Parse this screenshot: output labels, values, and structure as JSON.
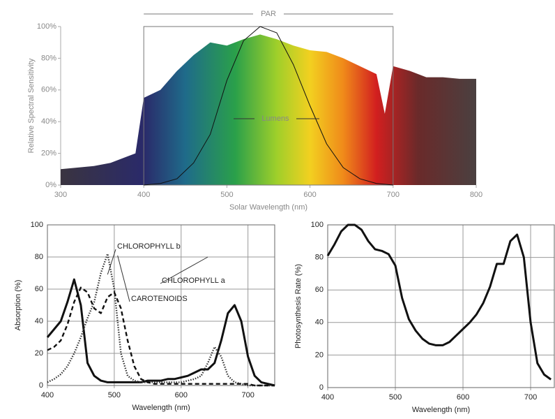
{
  "chart_data": [
    {
      "type": "area",
      "x_label": "Solar Wavelength (nm)",
      "y_label": "Relative Spectral Sensitivity",
      "annotations": [
        "PAR",
        "Lumens"
      ],
      "par_range": [
        400,
        700
      ],
      "xlim": [
        300,
        800
      ],
      "ylim": [
        0,
        100
      ],
      "xticks": [
        300,
        400,
        500,
        600,
        700,
        800
      ],
      "yticks": [
        {
          "value": 0,
          "label": "0%"
        },
        {
          "value": 20,
          "label": "20%"
        },
        {
          "value": 40,
          "label": "40%"
        },
        {
          "value": 60,
          "label": "60%"
        },
        {
          "value": 80,
          "label": "80%"
        },
        {
          "value": 100,
          "label": "100%"
        }
      ],
      "x": [
        300,
        320,
        340,
        360,
        380,
        390,
        400,
        420,
        440,
        460,
        480,
        500,
        520,
        540,
        560,
        580,
        600,
        620,
        640,
        660,
        680,
        690,
        700,
        720,
        740,
        760,
        780,
        800
      ],
      "values": [
        10,
        11,
        12,
        14,
        18,
        20,
        55,
        60,
        72,
        82,
        90,
        88,
        92,
        95,
        92,
        88,
        85,
        84,
        80,
        75,
        70,
        45,
        75,
        72,
        68,
        68,
        67,
        67
      ],
      "lumens": {
        "color": "#111",
        "x": [
          400,
          420,
          440,
          460,
          480,
          500,
          520,
          540,
          560,
          580,
          600,
          620,
          640,
          660,
          680,
          700
        ],
        "values": [
          0,
          1,
          4,
          14,
          32,
          66,
          91,
          100,
          96,
          76,
          50,
          26,
          11,
          4,
          1,
          0
        ]
      }
    },
    {
      "type": "line",
      "x_label": "Wavelength (nm)",
      "y_label": "Absorption (%)",
      "grid": true,
      "xlim": [
        400,
        740
      ],
      "ylim": [
        0,
        100
      ],
      "xticks": [
        400,
        500,
        600,
        700
      ],
      "yticks": [
        0,
        20,
        40,
        60,
        80,
        100
      ],
      "x": [
        400,
        410,
        420,
        430,
        440,
        450,
        460,
        470,
        480,
        490,
        500,
        510,
        520,
        530,
        540,
        550,
        560,
        570,
        580,
        590,
        600,
        610,
        620,
        630,
        640,
        650,
        660,
        670,
        680,
        690,
        700,
        710,
        720,
        730,
        740
      ],
      "series": [
        {
          "name": "CHLOROPHYLL a",
          "color": "#111",
          "dash": "solid",
          "values": [
            30,
            35,
            40,
            52,
            66,
            50,
            14,
            6,
            3,
            2,
            2,
            2,
            2,
            2,
            2,
            3,
            3,
            3,
            4,
            4,
            5,
            6,
            8,
            10,
            10,
            14,
            28,
            45,
            50,
            40,
            18,
            6,
            2,
            1,
            0
          ]
        },
        {
          "name": "CHLOROPHYLL b",
          "color": "#333",
          "dash": "dotted",
          "values": [
            2,
            4,
            7,
            12,
            20,
            30,
            42,
            52,
            70,
            82,
            60,
            20,
            6,
            3,
            2,
            2,
            2,
            2,
            2,
            2,
            2,
            3,
            4,
            6,
            14,
            24,
            18,
            6,
            2,
            1,
            0,
            0,
            0,
            0,
            0
          ]
        },
        {
          "name": "CAROTENOIDS",
          "color": "#111",
          "dash": "dashed",
          "values": [
            22,
            24,
            28,
            38,
            52,
            61,
            58,
            48,
            45,
            55,
            58,
            48,
            28,
            12,
            4,
            2,
            1,
            1,
            1,
            1,
            1,
            1,
            1,
            1,
            1,
            1,
            1,
            1,
            1,
            1,
            1,
            0,
            0,
            0,
            0
          ]
        }
      ]
    },
    {
      "type": "line",
      "x_label": "Wavelength (nm)",
      "y_label": "Photosynthesis Rate (%)",
      "grid": true,
      "xlim": [
        400,
        735
      ],
      "ylim": [
        0,
        100
      ],
      "xticks": [
        400,
        500,
        600,
        700
      ],
      "yticks": [
        0,
        20,
        40,
        60,
        80,
        100
      ],
      "x": [
        400,
        410,
        420,
        430,
        440,
        450,
        460,
        470,
        480,
        490,
        500,
        510,
        520,
        530,
        540,
        550,
        560,
        570,
        580,
        590,
        600,
        610,
        620,
        630,
        640,
        650,
        660,
        670,
        680,
        690,
        700,
        710,
        720,
        730
      ],
      "series": [
        {
          "color": "#111",
          "dash": "solid",
          "values": [
            81,
            88,
            96,
            100,
            100,
            97,
            90,
            85,
            84,
            82,
            75,
            55,
            42,
            35,
            30,
            27,
            26,
            26,
            28,
            32,
            36,
            40,
            45,
            52,
            62,
            76,
            76,
            90,
            94,
            80,
            40,
            15,
            8,
            5
          ]
        }
      ]
    }
  ]
}
